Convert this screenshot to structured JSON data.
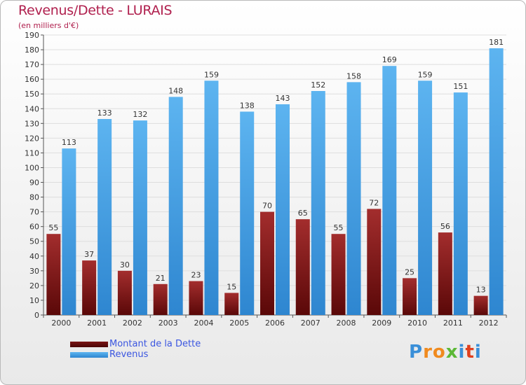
{
  "header": {
    "title": "Revenus/Dette - LURAIS",
    "subtitle": "(en milliers d'€)"
  },
  "colors": {
    "debt": "#8b1a1a",
    "revenue": "#4da6e8",
    "title": "#b0204e",
    "legend_text": "#3b56e0"
  },
  "chart_data": {
    "type": "bar",
    "title": "Revenus/Dette - LURAIS",
    "subtitle": "(en milliers d'€)",
    "xlabel": "",
    "ylabel": "",
    "ylim": [
      0,
      190
    ],
    "ytick_step": 10,
    "grid": true,
    "legend_placement": "bottom-left",
    "categories": [
      "2000",
      "2001",
      "2002",
      "2003",
      "2004",
      "2005",
      "2006",
      "2007",
      "2008",
      "2009",
      "2010",
      "2011",
      "2012"
    ],
    "series": [
      {
        "name": "Montant de la Dette",
        "color": "#8b1a1a",
        "values": [
          55,
          37,
          30,
          21,
          23,
          15,
          70,
          65,
          55,
          72,
          25,
          56,
          13
        ]
      },
      {
        "name": "Revenus",
        "color": "#4da6e8",
        "values": [
          113,
          133,
          132,
          148,
          159,
          138,
          143,
          152,
          158,
          169,
          159,
          151,
          181
        ]
      }
    ]
  },
  "legend": {
    "items": [
      {
        "label": "Montant de la Dette",
        "color": "#6b0f0f"
      },
      {
        "label": "Revenus",
        "color": "#4da6e8"
      }
    ]
  },
  "logo": {
    "text": "Proxiti"
  }
}
